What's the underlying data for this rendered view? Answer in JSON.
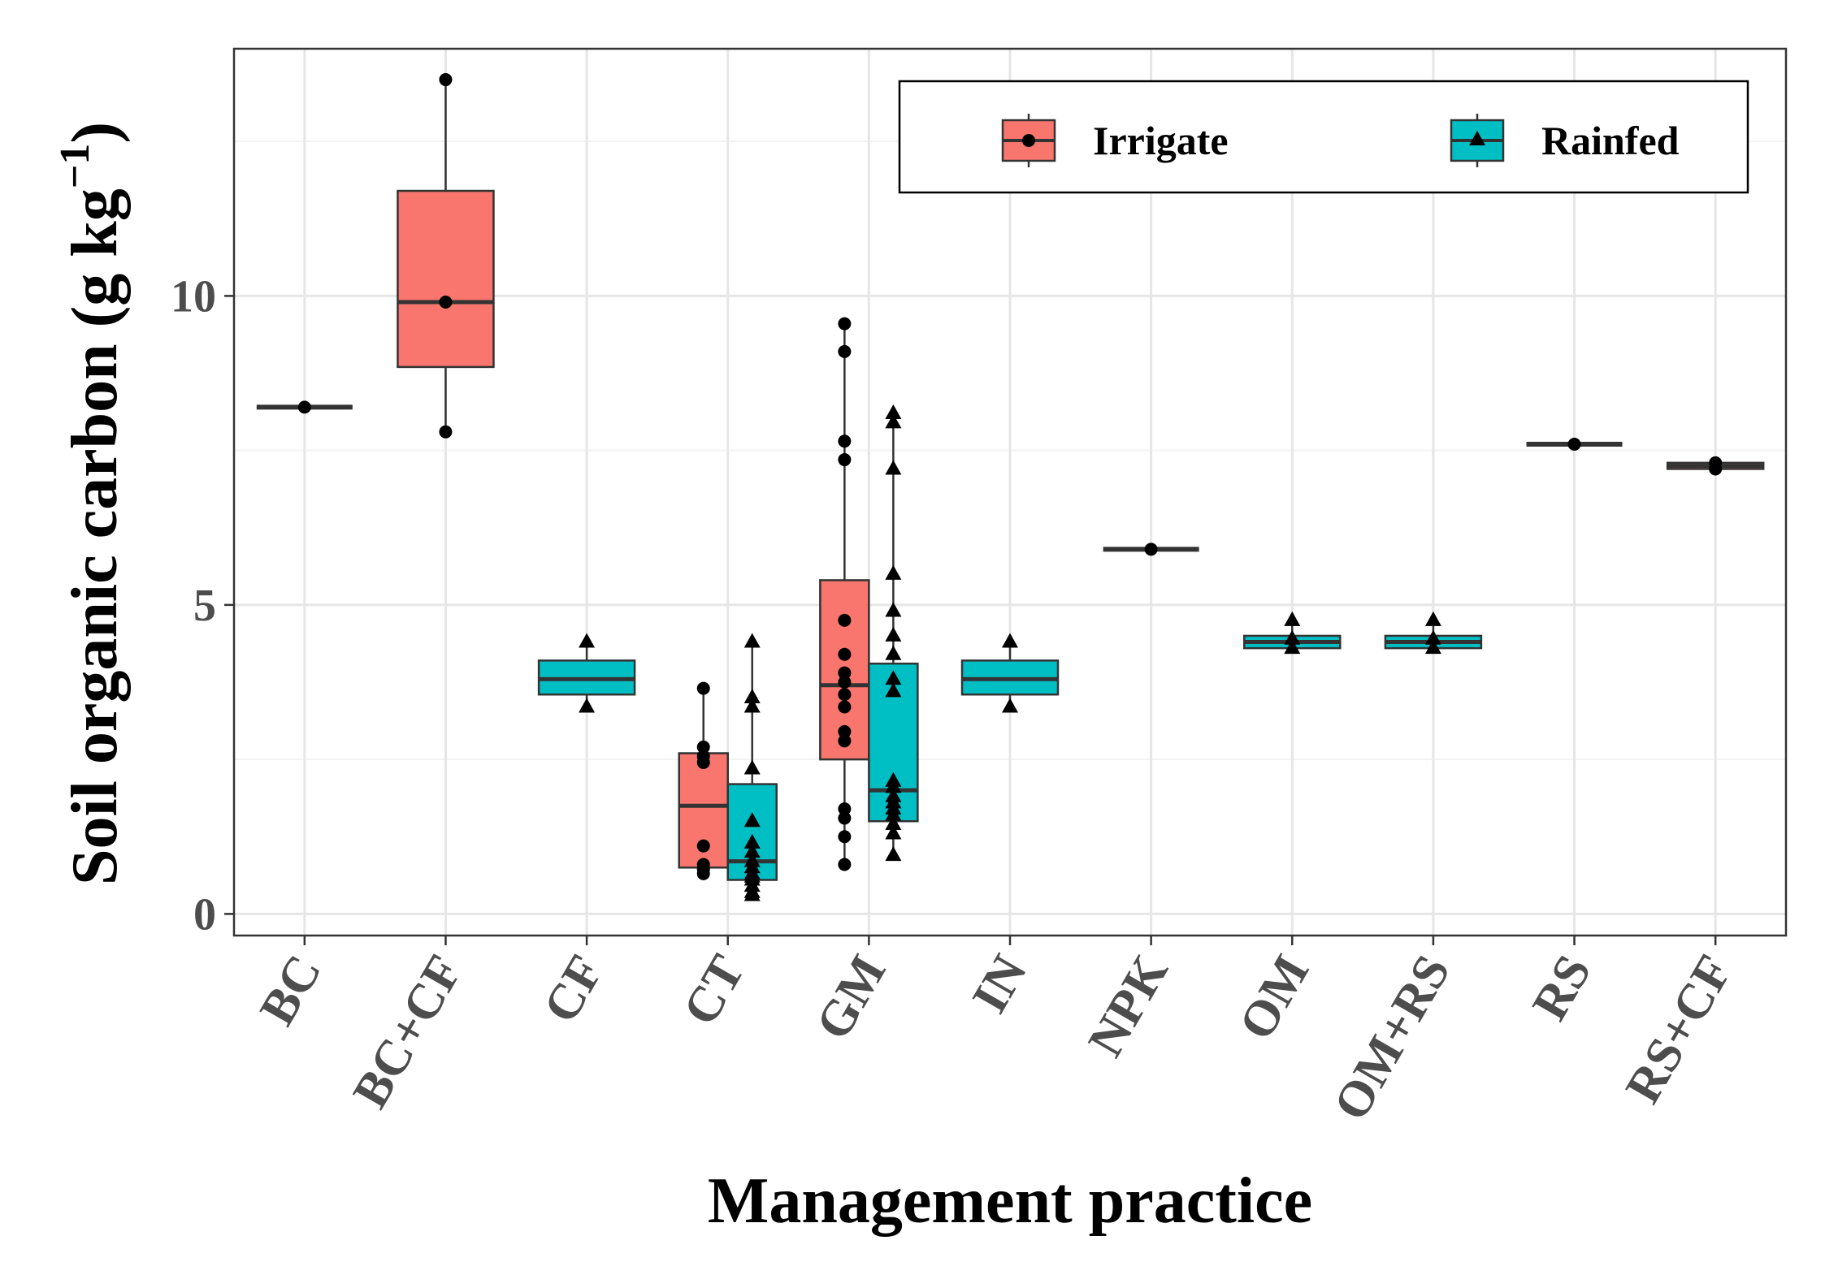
{
  "chart_data": {
    "type": "boxplot",
    "xlabel": "Management practice",
    "ylabel_main": "Soil organic carbon (g kg",
    "ylabel_sup": "−1",
    "ylabel_close": ")",
    "ylim": [
      -0.35,
      14.0
    ],
    "yticks": [
      0,
      5,
      10
    ],
    "grid": true,
    "legend_position": "top-right",
    "categories": [
      "BC",
      "BC+CF",
      "CF",
      "CT",
      "GM",
      "IN",
      "NPK",
      "OM",
      "OM+RS",
      "RS",
      "RS+CF"
    ],
    "series": [
      {
        "name": "Irrigate",
        "color": "#F8766D",
        "marker": "circle",
        "boxes": [
          {
            "category": "BC",
            "min": 8.2,
            "q1": 8.2,
            "median": 8.2,
            "q3": 8.2,
            "max": 8.2,
            "points": [
              8.2
            ]
          },
          {
            "category": "BC+CF",
            "min": 7.8,
            "q1": 8.85,
            "median": 9.9,
            "q3": 11.7,
            "max": 13.5,
            "points": [
              7.8,
              9.9,
              13.5
            ]
          },
          {
            "category": "CT",
            "min": 0.65,
            "q1": 0.75,
            "median": 1.75,
            "q3": 2.6,
            "max": 3.65,
            "points": [
              0.65,
              0.72,
              0.8,
              1.1,
              2.45,
              2.55,
              2.7,
              3.65
            ]
          },
          {
            "category": "GM",
            "min": 0.8,
            "q1": 2.5,
            "median": 3.7,
            "q3": 5.4,
            "max": 9.55,
            "points": [
              0.8,
              1.25,
              1.55,
              1.7,
              2.8,
              2.95,
              3.35,
              3.55,
              3.75,
              3.9,
              4.2,
              4.75,
              7.35,
              7.65,
              9.1,
              9.55
            ]
          },
          {
            "category": "NPK",
            "min": 5.9,
            "q1": 5.9,
            "median": 5.9,
            "q3": 5.9,
            "max": 5.9,
            "points": [
              5.9
            ]
          },
          {
            "category": "RS",
            "min": 7.6,
            "q1": 7.6,
            "median": 7.6,
            "q3": 7.6,
            "max": 7.6,
            "points": [
              7.6
            ]
          },
          {
            "category": "RS+CF",
            "min": 7.2,
            "q1": 7.2,
            "median": 7.25,
            "q3": 7.3,
            "max": 7.3,
            "points": [
              7.2,
              7.3
            ]
          }
        ]
      },
      {
        "name": "Rainfed",
        "color": "#00BFC4",
        "marker": "triangle",
        "boxes": [
          {
            "category": "CF",
            "min": 3.35,
            "q1": 3.55,
            "median": 3.8,
            "q3": 4.1,
            "max": 4.4,
            "points": [
              3.35,
              4.4
            ]
          },
          {
            "category": "CT",
            "min": 0.3,
            "q1": 0.55,
            "median": 0.85,
            "q3": 2.1,
            "max": 4.4,
            "points": [
              0.3,
              0.35,
              0.45,
              0.55,
              0.6,
              0.65,
              0.75,
              0.85,
              1.0,
              1.15,
              1.5,
              2.35,
              3.35,
              3.5,
              4.4
            ]
          },
          {
            "category": "GM",
            "min": 0.95,
            "q1": 1.5,
            "median": 2.0,
            "q3": 4.05,
            "max": 8.1,
            "points": [
              0.95,
              1.3,
              1.45,
              1.6,
              1.7,
              1.8,
              1.9,
              2.05,
              2.15,
              3.6,
              3.8,
              4.2,
              4.5,
              4.9,
              5.5,
              7.2,
              7.95,
              8.1
            ]
          },
          {
            "category": "IN",
            "min": 3.35,
            "q1": 3.55,
            "median": 3.8,
            "q3": 4.1,
            "max": 4.4,
            "points": [
              3.35,
              4.4
            ]
          },
          {
            "category": "OM",
            "min": 4.3,
            "q1": 4.3,
            "median": 4.4,
            "q3": 4.5,
            "max": 4.75,
            "points": [
              4.3,
              4.45,
              4.75
            ]
          },
          {
            "category": "OM+RS",
            "min": 4.3,
            "q1": 4.3,
            "median": 4.4,
            "q3": 4.5,
            "max": 4.75,
            "points": [
              4.3,
              4.45,
              4.75
            ]
          }
        ]
      }
    ]
  }
}
